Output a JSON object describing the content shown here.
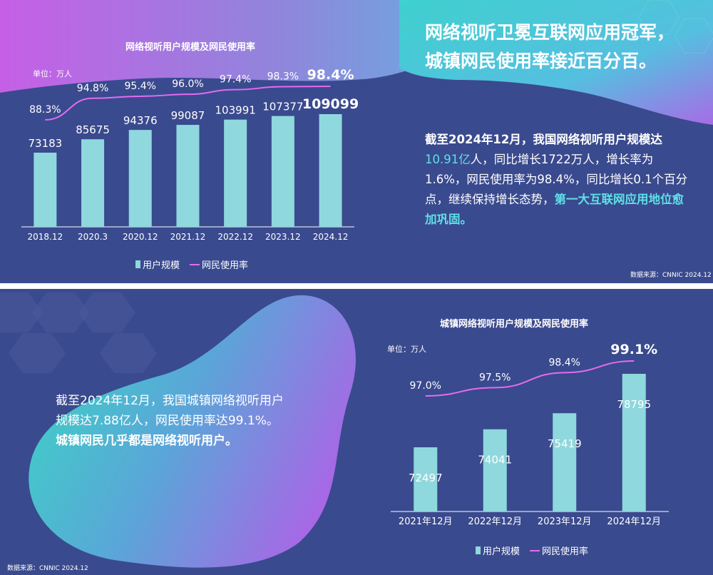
{
  "top": {
    "chart_title": "网络视听用户规模及网民使用率",
    "unit": "单位：万人",
    "headline_line1": "网络视听卫冕互联网应用冠军，",
    "headline_line2": "城镇网民使用率接近百分百。",
    "para_part1": "截至2024年12月，我国网络视听用户规模达",
    "para_highlight1": "10.91亿",
    "para_part2": "人，同比增长1722万人，增长率为1.6%，网民使用率为98.4%，同比增长0.1个百分点，继续保持增长态势，",
    "para_highlight2": "第一大互联网应用地位愈加巩固。",
    "legend_bar": "用户规模",
    "legend_line": "网民使用率",
    "source": "数据来源：CNNIC 2024.12"
  },
  "bottom": {
    "chart_title": "城镇网络视听用户规模及网民使用率",
    "unit": "单位：万人",
    "para_line1": "截至2024年12月，我国城镇网络视听用户",
    "para_line2": "规模达7.88亿人，网民使用率达99.1%。",
    "para_bold": "城镇网民几乎都是网络视听用户。",
    "legend_bar": "用户规模",
    "legend_line": "网民使用率",
    "source": "数据来源：CNNIC 2024.12"
  },
  "colors": {
    "background": "#3a4a8e",
    "bar": "#8fd8dd",
    "line": "#e46bf0",
    "highlight": "#5ee0e6"
  },
  "chart_data": [
    {
      "type": "bar",
      "title": "网络视听用户规模及网民使用率",
      "unit": "单位：万人",
      "categories": [
        "2018.12",
        "2020.3",
        "2020.12",
        "2021.12",
        "2022.12",
        "2023.12",
        "2024.12"
      ],
      "series": [
        {
          "name": "用户规模",
          "type": "bar",
          "values": [
            73183,
            85675,
            94376,
            99087,
            103991,
            107377,
            109099
          ]
        },
        {
          "name": "网民使用率",
          "type": "line",
          "values": [
            88.3,
            94.8,
            95.4,
            96.0,
            97.4,
            98.3,
            98.4
          ],
          "labels": [
            "88.3%",
            "94.8%",
            "95.4%",
            "96.0%",
            "97.4%",
            "98.3%",
            "98.4%"
          ]
        }
      ],
      "ylim": [
        0,
        140000
      ],
      "legend": "bottom",
      "grid": false
    },
    {
      "type": "bar",
      "title": "城镇网络视听用户规模及网民使用率",
      "unit": "单位：万人",
      "categories": [
        "2021年12月",
        "2022年12月",
        "2023年12月",
        "2024年12月"
      ],
      "series": [
        {
          "name": "用户规模",
          "type": "bar",
          "values": [
            72497,
            74041,
            75419,
            78795
          ]
        },
        {
          "name": "网民使用率",
          "type": "line",
          "values": [
            97.0,
            97.5,
            98.4,
            99.1
          ],
          "labels": [
            "97.0%",
            "97.5%",
            "98.4%",
            "99.1%"
          ]
        }
      ],
      "legend": "bottom",
      "grid": false
    }
  ]
}
